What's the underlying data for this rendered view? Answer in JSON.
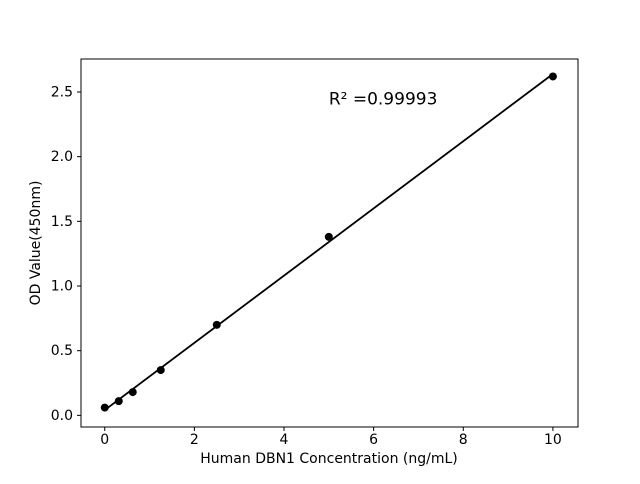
{
  "figure": {
    "background": "#ffffff"
  },
  "chart_data": {
    "type": "scatter",
    "title": "",
    "xlabel": "Human DBN1 Concentration (ng/mL)",
    "ylabel": "OD Value(450nm)",
    "x": [
      0,
      0.313,
      0.625,
      1.25,
      2.5,
      5,
      10
    ],
    "y": [
      0.06,
      0.11,
      0.18,
      0.35,
      0.7,
      1.38,
      2.62
    ],
    "fit_line": {
      "x1": 0,
      "y1": 0.041,
      "x2": 10,
      "y2": 2.639
    },
    "annotation": {
      "text": "R² =0.99993",
      "x": 5.0,
      "y": 2.45
    },
    "xticks": [
      0,
      2,
      4,
      6,
      8,
      10
    ],
    "xtick_labels": [
      "0",
      "2",
      "4",
      "6",
      "8",
      "10"
    ],
    "yticks": [
      0.0,
      0.5,
      1.0,
      1.5,
      2.0,
      2.5
    ],
    "ytick_labels": [
      "0.0",
      "0.5",
      "1.0",
      "1.5",
      "2.0",
      "2.5"
    ],
    "xlim": [
      -0.53,
      10.56
    ],
    "ylim": [
      -0.09,
      2.755
    ],
    "grid": false,
    "legend": null,
    "marker_color": "#000000",
    "line_color": "#000000",
    "axes_color": "#000000"
  }
}
